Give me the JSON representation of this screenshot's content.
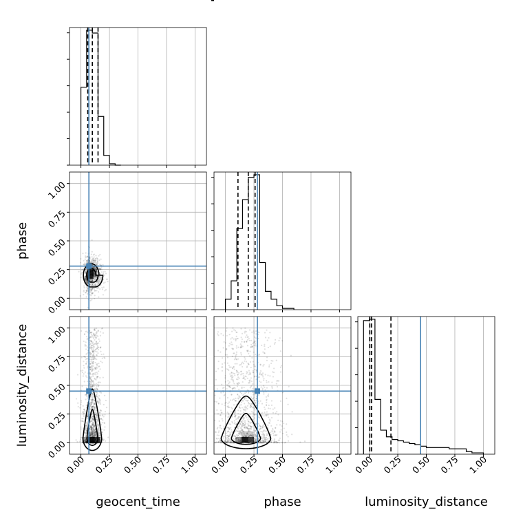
{
  "chart_data": {
    "type": "corner",
    "parameters": [
      "geocent_time",
      "phase",
      "luminosity_distance"
    ],
    "axis_range": [
      -0.1,
      1.1
    ],
    "ticks": [
      0.0,
      0.25,
      0.5,
      0.75,
      1.0
    ],
    "tick_labels": [
      "0.00",
      "0.25",
      "0.50",
      "0.75",
      "1.00"
    ],
    "grid": true,
    "truths": [
      0.07,
      0.28,
      0.45
    ],
    "truth_color": "#4682b4",
    "quantiles": [
      [
        0.06,
        0.1,
        0.15
      ],
      [
        0.11,
        0.2,
        0.26
      ],
      [
        0.005,
        0.02,
        0.19
      ]
    ],
    "histograms": [
      {
        "edges": [
          0.0,
          0.05,
          0.1,
          0.15,
          0.2,
          0.25,
          0.3,
          0.35
        ],
        "counts": [
          56,
          97,
          95,
          35,
          7,
          1,
          0
        ]
      },
      {
        "edges": [
          0.0,
          0.05,
          0.1,
          0.15,
          0.2,
          0.25,
          0.3,
          0.35,
          0.4,
          0.45,
          0.5,
          0.55,
          0.6
        ],
        "counts": [
          8,
          22,
          62,
          84,
          101,
          103,
          36,
          14,
          8,
          3,
          1,
          1
        ]
      },
      {
        "edges": [
          -0.05,
          0.0,
          0.05,
          0.1,
          0.15,
          0.2,
          0.25,
          0.3,
          0.35,
          0.4,
          0.45,
          0.5,
          0.55,
          0.6,
          0.65,
          0.7,
          0.75,
          0.8,
          0.85,
          0.9,
          0.95,
          1.0
        ],
        "counts": [
          100,
          101,
          41,
          18,
          13,
          11,
          10,
          9,
          8,
          7,
          6,
          5,
          5,
          5,
          5,
          4,
          4,
          4,
          2,
          1,
          1
        ]
      }
    ],
    "density_cores": [
      {
        "pair": [
          "geocent_time",
          "phase"
        ],
        "center": [
          0.08,
          0.21
        ],
        "spread": [
          0.035,
          0.06
        ],
        "tail": [
          0.25,
          0.05
        ]
      },
      {
        "pair": [
          "geocent_time",
          "luminosity_distance"
        ],
        "center": [
          0.08,
          0.03
        ],
        "spread": [
          0.03,
          0.09
        ],
        "tail": [
          0.22,
          1.0
        ]
      },
      {
        "pair": [
          "phase",
          "luminosity_distance"
        ],
        "center": [
          0.16,
          0.03
        ],
        "spread": [
          0.08,
          0.09
        ],
        "tail": [
          0.5,
          1.0
        ]
      }
    ]
  }
}
